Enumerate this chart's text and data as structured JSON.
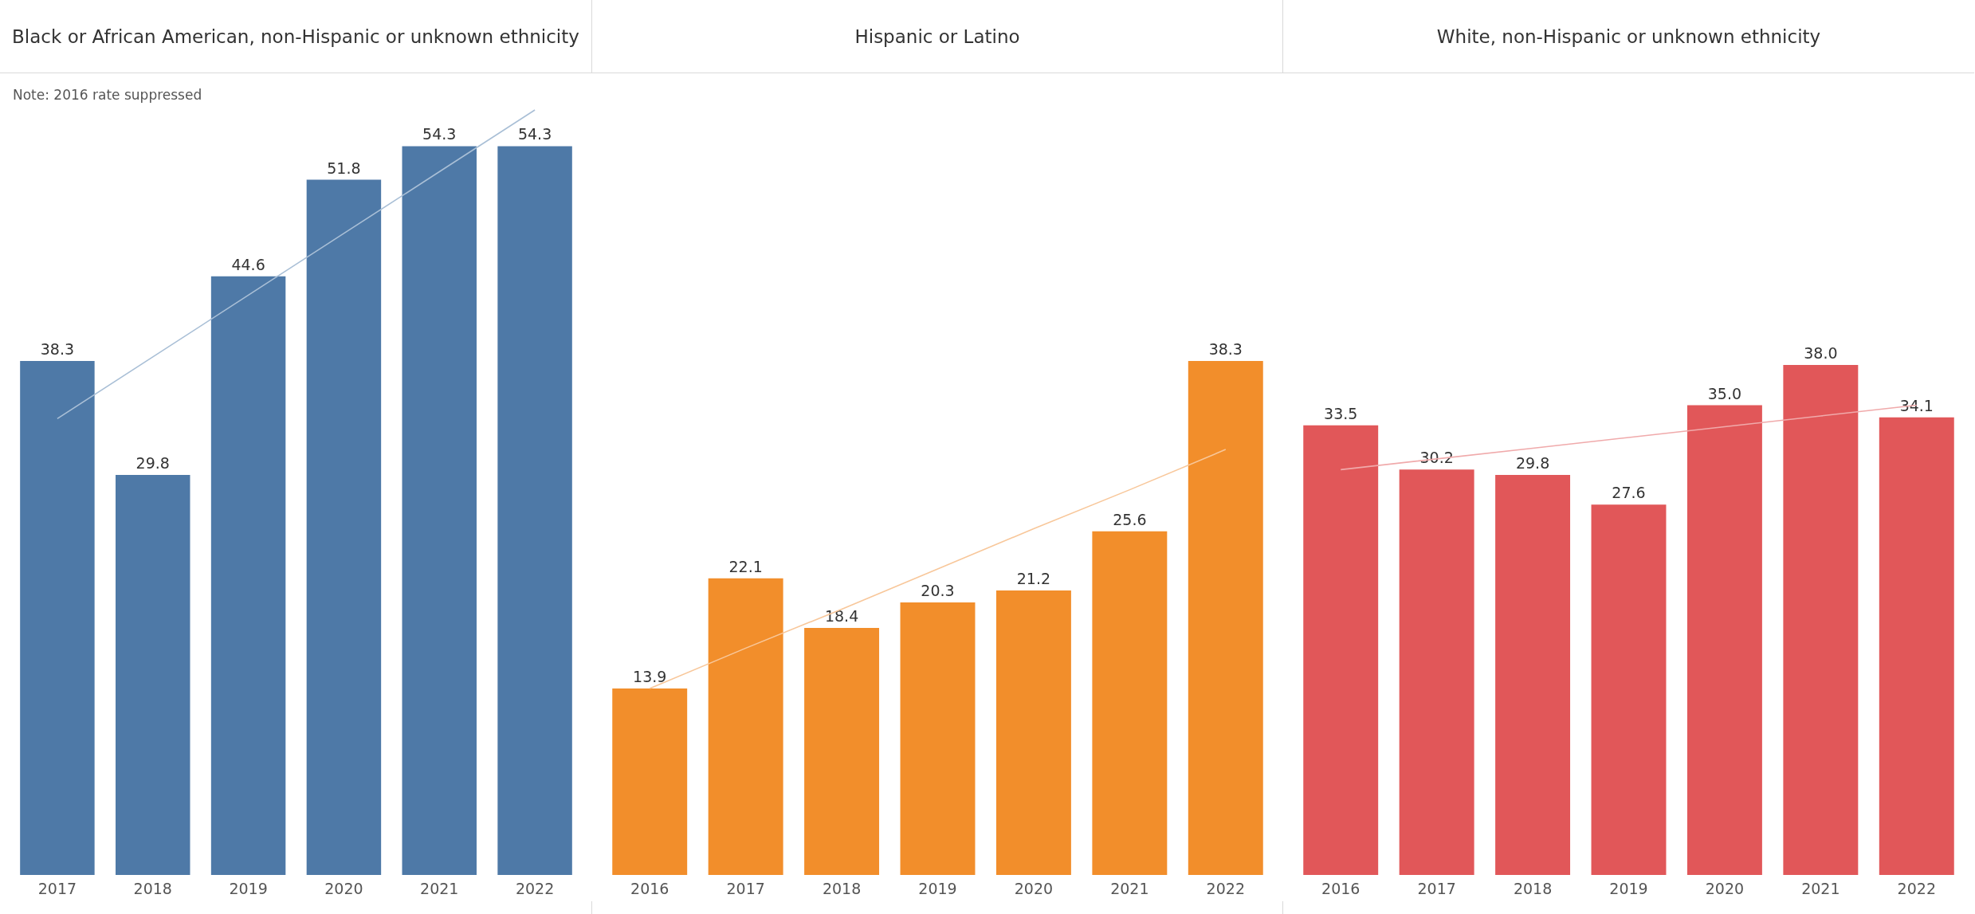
{
  "chart_data": [
    {
      "type": "bar",
      "title": "Black or African American, non-Hispanic or unknown ethnicity",
      "categories": [
        "2017",
        "2018",
        "2019",
        "2020",
        "2021",
        "2022"
      ],
      "series": [
        {
          "color": "#4e79a7",
          "values": [
            38.3,
            29.8,
            44.6,
            51.8,
            54.3,
            54.3
          ],
          "value_labels": [
            "38.3",
            "29.8",
            "44.6",
            "51.8",
            "54.3",
            "54.3"
          ]
        },
        {
          "type": "line",
          "color": "#a9bfd6",
          "values": [
            34.0,
            38.6,
            43.2,
            47.8,
            52.4,
            57.0
          ]
        }
      ],
      "tick_labels": "x",
      "annotations": [
        "Note: 2016 rate suppressed"
      ]
    },
    {
      "type": "bar",
      "title": "Hispanic or Latino",
      "categories": [
        "2016",
        "2017",
        "2018",
        "2019",
        "2020",
        "2021",
        "2022"
      ],
      "series": [
        {
          "color": "#f28e2b",
          "values": [
            13.9,
            22.1,
            18.4,
            20.3,
            21.2,
            25.6,
            38.3
          ],
          "value_labels": [
            "13.9",
            "22.1",
            "18.4",
            "20.3",
            "21.2",
            "25.6",
            "38.3"
          ]
        },
        {
          "type": "line",
          "color": "#f8c79a",
          "values": [
            13.9,
            16.9,
            19.8,
            22.8,
            25.8,
            28.7,
            31.7
          ]
        }
      ],
      "tick_labels": "x"
    },
    {
      "type": "bar",
      "title": "White, non-Hispanic or unknown ethnicity",
      "categories": [
        "2016",
        "2017",
        "2018",
        "2019",
        "2020",
        "2021",
        "2022"
      ],
      "series": [
        {
          "color": "#e15759",
          "values": [
            33.5,
            30.2,
            29.8,
            27.6,
            35.0,
            38.0,
            34.1
          ],
          "value_labels": [
            "33.5",
            "30.2",
            "29.8",
            "27.6",
            "35.0",
            "38.0",
            "34.1"
          ]
        },
        {
          "type": "line",
          "color": "#f0aaab",
          "values": [
            30.2,
            31.0,
            31.8,
            32.6,
            33.4,
            34.2,
            35.0
          ]
        }
      ],
      "tick_labels": "x"
    }
  ]
}
